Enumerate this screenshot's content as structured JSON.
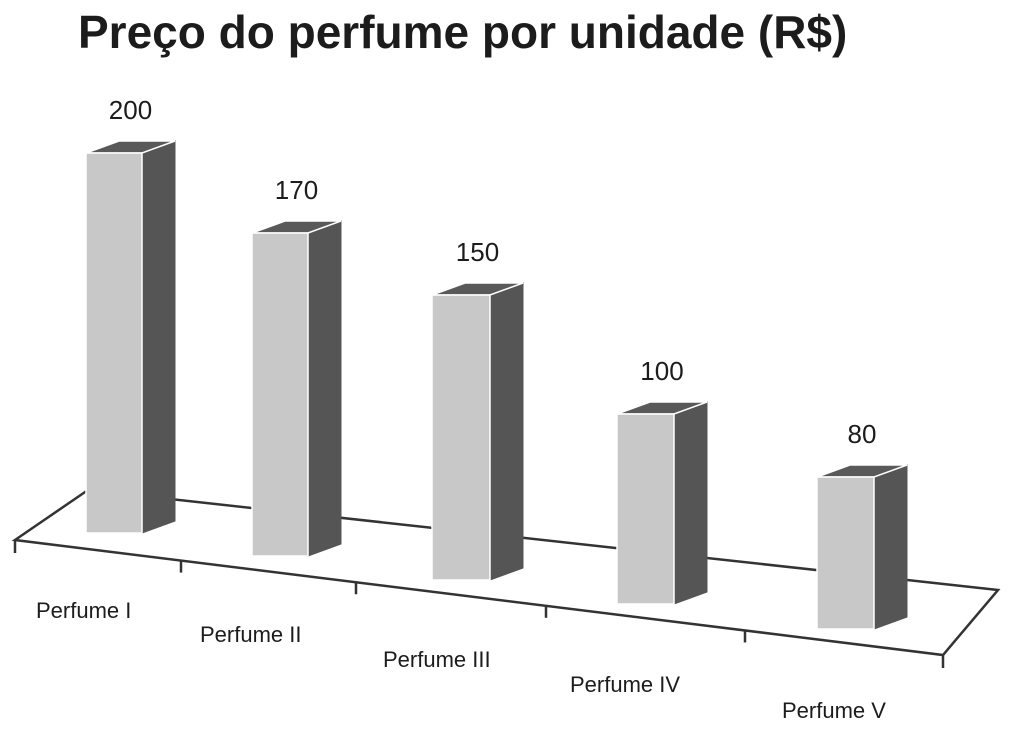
{
  "chart_data": {
    "type": "bar",
    "title": "Preço do perfume por unidade (R$)",
    "categories": [
      "Perfume I",
      "Perfume II",
      "Perfume III",
      "Perfume IV",
      "Perfume V"
    ],
    "values": [
      200,
      170,
      150,
      100,
      80
    ],
    "value_labels": [
      "200",
      "170",
      "150",
      "100",
      "80"
    ],
    "style": "3d-column",
    "grid": false,
    "legend": "none",
    "colors": {
      "front": "#c8c8c8",
      "side": "#565556",
      "top": "#5a595a",
      "axis": "#333333",
      "text": "#1c1c1c"
    }
  }
}
